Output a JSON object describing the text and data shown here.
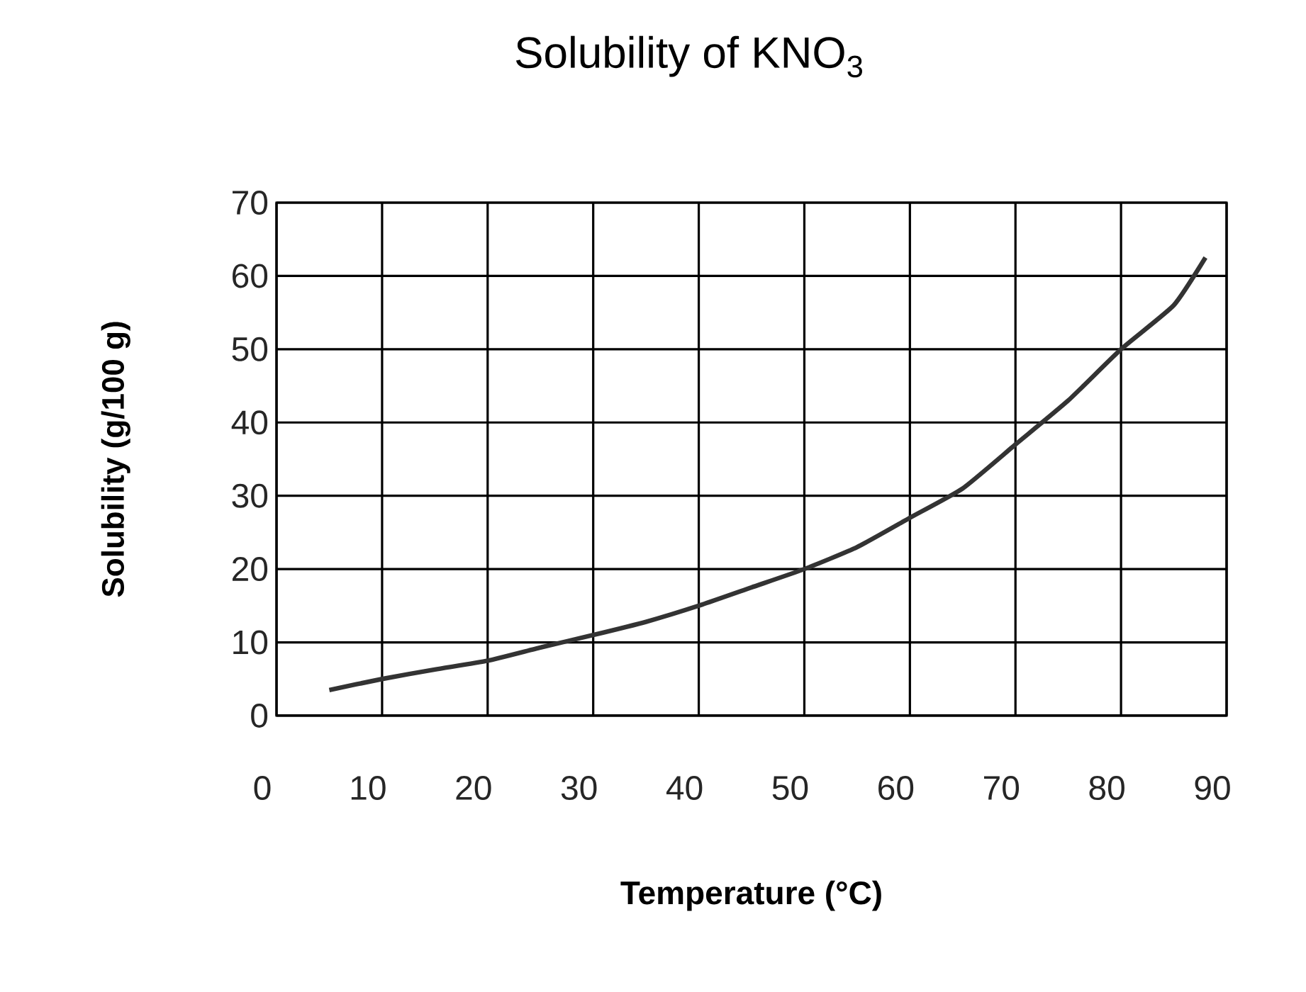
{
  "chart_data": {
    "type": "line",
    "title": "Solubility of KNO$_{3}$",
    "xlabel": "Temperature (°C)",
    "ylabel": "Solubility (g/100 g)",
    "x": [
      5,
      10,
      15,
      20,
      25,
      30,
      35,
      40,
      45,
      50,
      55,
      60,
      65,
      70,
      75,
      80,
      85,
      88
    ],
    "series": [
      {
        "color": "#333333",
        "values": [
          3.5,
          5,
          6.3,
          7.5,
          9.3,
          11,
          12.8,
          15,
          17.5,
          20,
          23,
          27,
          31,
          37,
          43,
          50,
          56,
          62.5
        ]
      }
    ],
    "xlim": [
      0,
      90
    ],
    "ylim": [
      0,
      70
    ],
    "xticks": [
      0,
      10,
      20,
      30,
      40,
      50,
      60,
      70,
      80,
      90
    ],
    "yticks": [
      0,
      10,
      20,
      30,
      40,
      50,
      60,
      70
    ],
    "grid": true,
    "marker": "none",
    "line_style": "solid"
  }
}
